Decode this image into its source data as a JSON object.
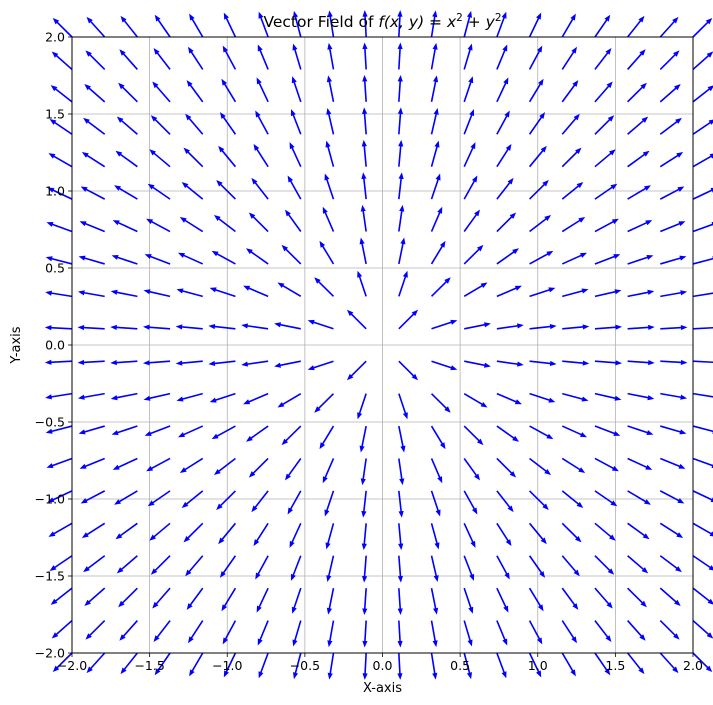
{
  "chart_data": {
    "type": "quiver",
    "title": "Vector Field of f(x, y) = x² + y²",
    "title_parts": {
      "prefix": "Vector Field of ",
      "f": "f",
      "args": "(x, y) = x",
      "sup1": "2",
      "plus": " + y",
      "sup2": "2"
    },
    "xlabel": "X-axis",
    "ylabel": "Y-axis",
    "xlim": [
      -2.0,
      2.0
    ],
    "ylim": [
      -2.0,
      2.0
    ],
    "xticks": [
      "−2.0",
      "−1.5",
      "−1.0",
      "−0.5",
      "0.0",
      "0.5",
      "1.0",
      "1.5",
      "2.0"
    ],
    "yticks": [
      "−2.0",
      "−1.5",
      "−1.0",
      "−0.5",
      "0.0",
      "0.5",
      "1.0",
      "1.5",
      "2.0"
    ],
    "grid": true,
    "field": {
      "u": "2x",
      "v": "2y",
      "normalized": true
    },
    "grid_points": {
      "x_range": [
        -2.0,
        2.0
      ],
      "y_range": [
        -2.0,
        2.0
      ],
      "count": 20
    },
    "color": "#0000ff"
  }
}
